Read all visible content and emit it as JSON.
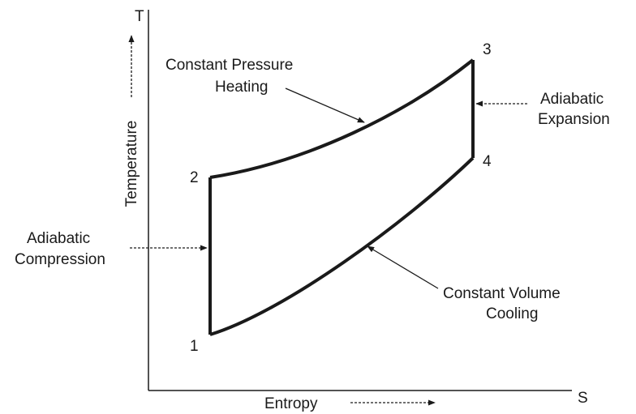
{
  "axes": {
    "x_label": "Entropy",
    "y_label": "Temperature",
    "x_symbol": "S",
    "y_symbol": "T"
  },
  "points": {
    "p1": "1",
    "p2": "2",
    "p3": "3",
    "p4": "4"
  },
  "processes": {
    "heating_line1": "Constant Pressure",
    "heating_line2": "Heating",
    "expansion_line1": "Adiabatic",
    "expansion_line2": "Expansion",
    "compression_line1": "Adiabatic",
    "compression_line2": "Compression",
    "cooling_line1": "Constant Volume",
    "cooling_line2": "Cooling"
  },
  "colors": {
    "ink": "#1a1a1a",
    "background": "#ffffff"
  }
}
